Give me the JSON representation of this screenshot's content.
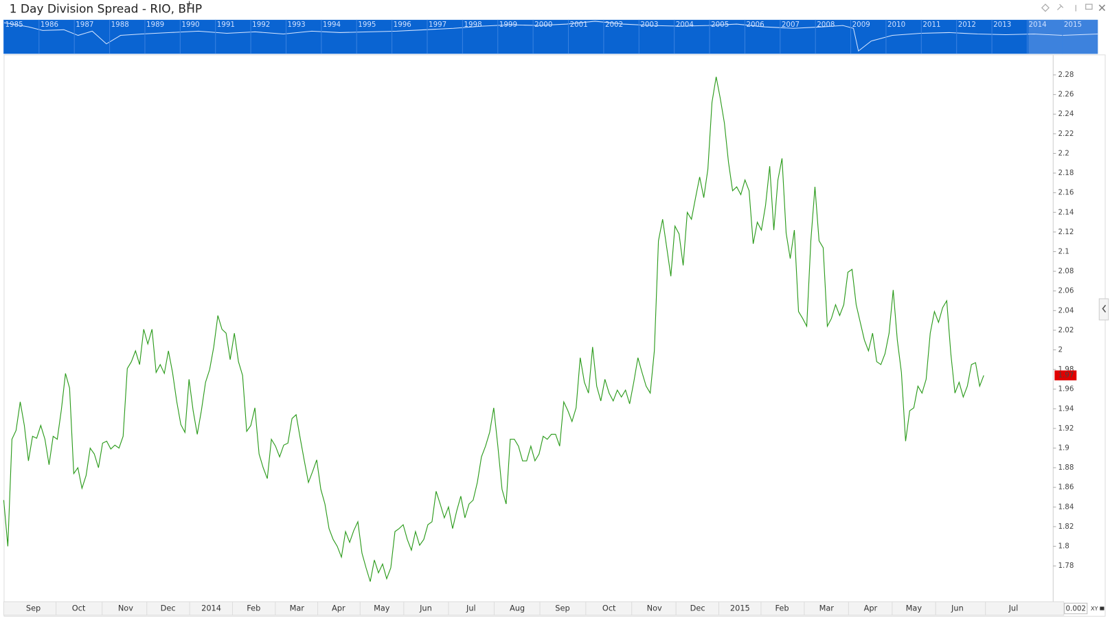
{
  "chart_data": {
    "type": "line",
    "title": "1 Day Division Spread - RIO, BHP",
    "title_mark": "+",
    "color": "#2a9a1a",
    "values": [
      1.847,
      1.8,
      1.909,
      1.918,
      1.947,
      1.923,
      1.887,
      1.912,
      1.91,
      1.923,
      1.909,
      1.883,
      1.912,
      1.909,
      1.939,
      1.976,
      1.961,
      1.874,
      1.88,
      1.859,
      1.872,
      1.9,
      1.894,
      1.88,
      1.905,
      1.907,
      1.899,
      1.903,
      1.9,
      1.912,
      1.981,
      1.988,
      1.999,
      1.985,
      2.021,
      2.006,
      2.021,
      1.977,
      1.985,
      1.976,
      1.999,
      1.977,
      1.948,
      1.924,
      1.916,
      1.97,
      1.938,
      1.914,
      1.938,
      1.967,
      1.98,
      2.003,
      2.035,
      2.021,
      2.017,
      1.99,
      2.017,
      1.988,
      1.974,
      1.917,
      1.923,
      1.941,
      1.894,
      1.88,
      1.869,
      1.909,
      1.902,
      1.891,
      1.903,
      1.905,
      1.93,
      1.934,
      1.91,
      1.887,
      1.865,
      1.876,
      1.888,
      1.858,
      1.843,
      1.818,
      1.807,
      1.8,
      1.789,
      1.815,
      1.804,
      1.816,
      1.825,
      1.793,
      1.778,
      1.764,
      1.786,
      1.773,
      1.782,
      1.767,
      1.778,
      1.815,
      1.818,
      1.822,
      1.807,
      1.796,
      1.815,
      1.801,
      1.807,
      1.822,
      1.825,
      1.856,
      1.843,
      1.829,
      1.84,
      1.818,
      1.836,
      1.851,
      1.829,
      1.843,
      1.847,
      1.865,
      1.891,
      1.902,
      1.916,
      1.941,
      1.902,
      1.858,
      1.843,
      1.909,
      1.909,
      1.902,
      1.887,
      1.887,
      1.902,
      1.887,
      1.894,
      1.912,
      1.909,
      1.914,
      1.914,
      1.902,
      1.947,
      1.938,
      1.927,
      1.941,
      1.992,
      1.967,
      1.956,
      2.003,
      1.963,
      1.948,
      1.97,
      1.956,
      1.948,
      1.959,
      1.952,
      1.959,
      1.945,
      1.967,
      1.992,
      1.977,
      1.963,
      1.956,
      1.999,
      2.111,
      2.133,
      2.104,
      2.075,
      2.126,
      2.118,
      2.086,
      2.14,
      2.133,
      2.155,
      2.176,
      2.155,
      2.184,
      2.252,
      2.278,
      2.256,
      2.231,
      2.191,
      2.162,
      2.166,
      2.158,
      2.173,
      2.162,
      2.108,
      2.13,
      2.122,
      2.147,
      2.187,
      2.122,
      2.173,
      2.195,
      2.119,
      2.093,
      2.122,
      2.039,
      2.032,
      2.024,
      2.111,
      2.166,
      2.111,
      2.104,
      2.024,
      2.032,
      2.046,
      2.035,
      2.046,
      2.079,
      2.082,
      2.046,
      2.028,
      2.01,
      1.999,
      2.017,
      1.988,
      1.985,
      1.996,
      2.017,
      2.061,
      2.01,
      1.977,
      1.907,
      1.938,
      1.941,
      1.963,
      1.956,
      1.97,
      2.017,
      2.039,
      2.028,
      2.043,
      2.05,
      1.996,
      1.956,
      1.967,
      1.952,
      1.963,
      1.985,
      1.987,
      1.963,
      1.974
    ],
    "last_value_label": "1.97",
    "xlim": [
      0,
      254.5
    ],
    "xticks": [
      {
        "value": 7.2,
        "label": "Sep"
      },
      {
        "value": 18.2,
        "label": "Oct"
      },
      {
        "value": 29.6,
        "label": "Nov"
      },
      {
        "value": 39.9,
        "label": "Dec"
      },
      {
        "value": 50.4,
        "label": "2014"
      },
      {
        "value": 60.7,
        "label": "Feb"
      },
      {
        "value": 71.2,
        "label": "Mar"
      },
      {
        "value": 81.3,
        "label": "Apr"
      },
      {
        "value": 91.8,
        "label": "May"
      },
      {
        "value": 102.5,
        "label": "Jun"
      },
      {
        "value": 113.5,
        "label": "Jul"
      },
      {
        "value": 124.7,
        "label": "Aug"
      },
      {
        "value": 135.7,
        "label": "Sep"
      },
      {
        "value": 147.0,
        "label": "Oct"
      },
      {
        "value": 158.0,
        "label": "Nov"
      },
      {
        "value": 168.5,
        "label": "Dec"
      },
      {
        "value": 178.8,
        "label": "2015"
      },
      {
        "value": 189.0,
        "label": "Feb"
      },
      {
        "value": 199.8,
        "label": "Mar"
      },
      {
        "value": 210.5,
        "label": "Apr"
      },
      {
        "value": 221.0,
        "label": "May"
      },
      {
        "value": 231.6,
        "label": "Jun"
      },
      {
        "value": 245.2,
        "label": "Jul"
      }
    ],
    "ylim": [
      1.745,
      2.3
    ],
    "yticks": [
      1.78,
      1.8,
      1.82,
      1.84,
      1.86,
      1.88,
      1.9,
      1.92,
      1.94,
      1.96,
      1.98,
      2.0,
      2.02,
      2.04,
      2.06,
      2.08,
      2.1,
      2.12,
      2.14,
      2.16,
      2.18,
      2.2,
      2.22,
      2.24,
      2.26,
      2.28
    ],
    "navigator_years": [
      "1985",
      "1986",
      "1987",
      "1988",
      "1989",
      "1990",
      "1991",
      "1992",
      "1993",
      "1994",
      "1995",
      "1996",
      "1997",
      "1998",
      "1999",
      "2000",
      "2001",
      "2002",
      "2003",
      "2004",
      "2005",
      "2006",
      "2007",
      "2008",
      "2009",
      "2010",
      "2011",
      "2012",
      "2013",
      "2014",
      "2015"
    ],
    "step": "0.002",
    "mode": "XY"
  }
}
